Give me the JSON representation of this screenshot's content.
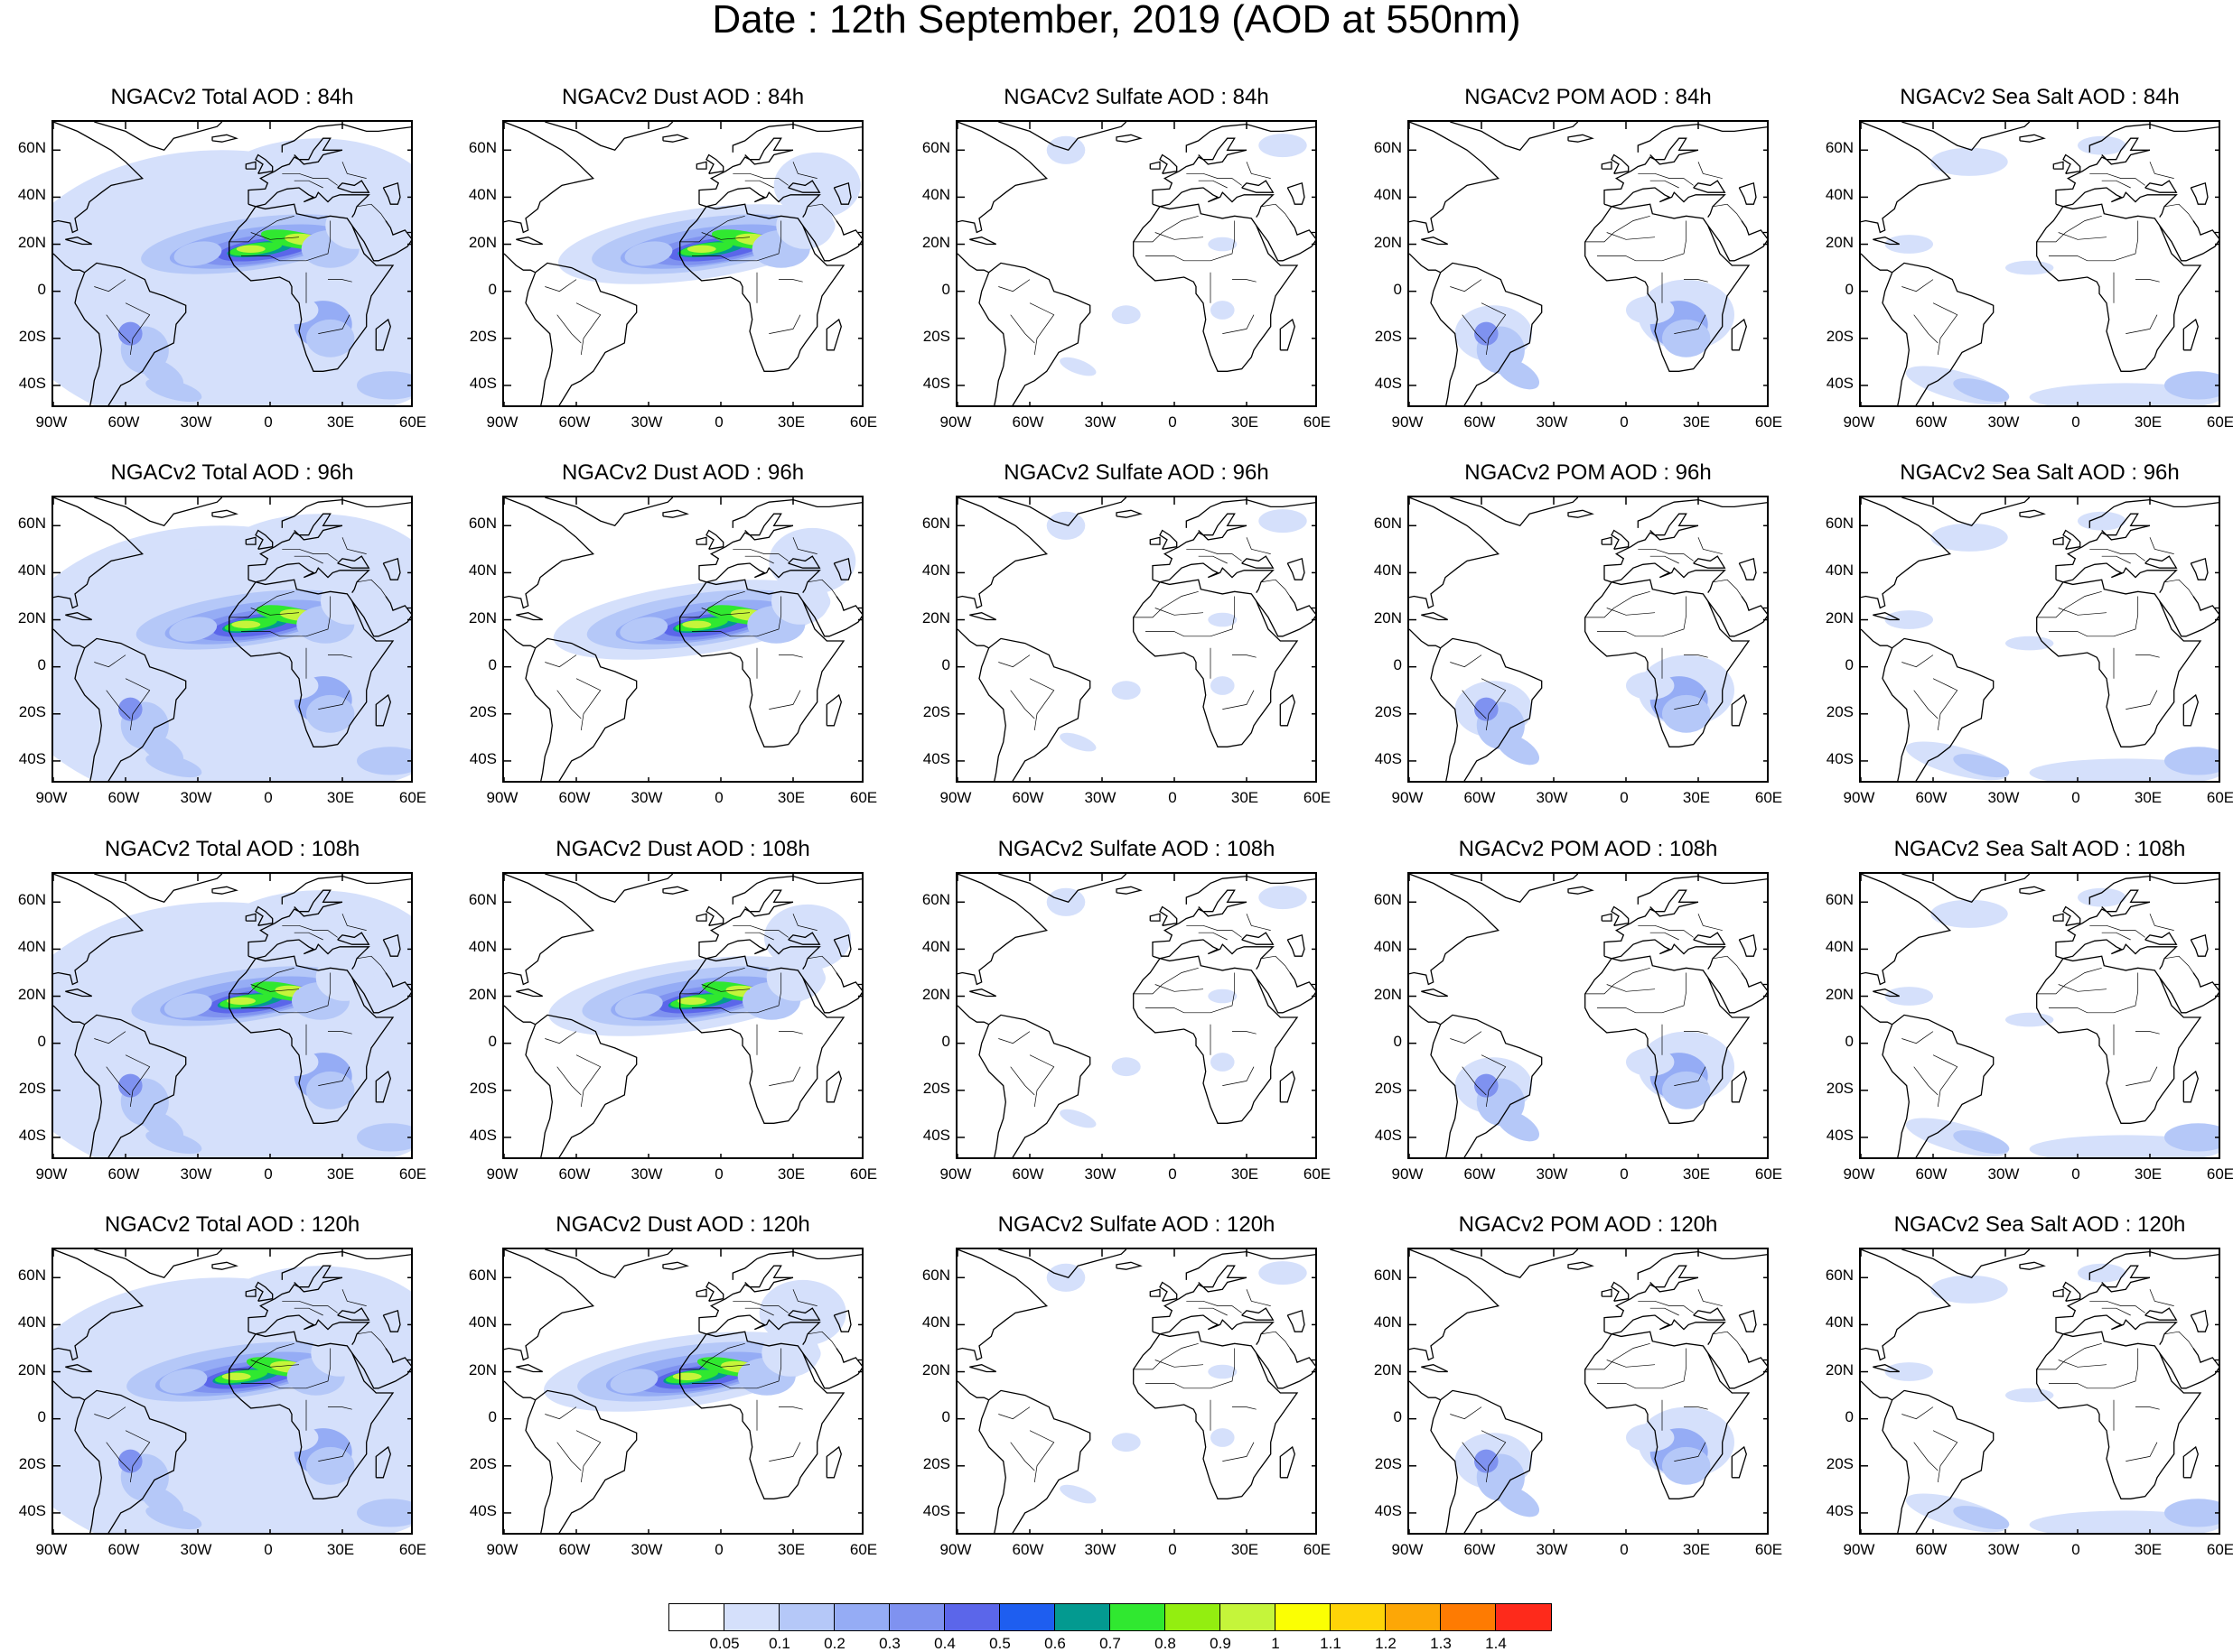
{
  "title": "Date : 12th September, 2019 (AOD at 550nm)",
  "rows": [
    {
      "forecast": "84h",
      "panels": [
        "NGACv2 Total AOD : 84h",
        "NGACv2 Dust AOD : 84h",
        "NGACv2 Sulfate AOD : 84h",
        "NGACv2 POM AOD : 84h",
        "NGACv2 Sea Salt AOD : 84h"
      ]
    },
    {
      "forecast": "96h",
      "panels": [
        "NGACv2 Total AOD : 96h",
        "NGACv2 Dust AOD : 96h",
        "NGACv2 Sulfate AOD : 96h",
        "NGACv2 POM AOD : 96h",
        "NGACv2 Sea Salt AOD : 96h"
      ]
    },
    {
      "forecast": "108h",
      "panels": [
        "NGACv2 Total AOD : 108h",
        "NGACv2 Dust AOD : 108h",
        "NGACv2 Sulfate AOD : 108h",
        "NGACv2 POM AOD : 108h",
        "NGACv2 Sea Salt AOD : 108h"
      ]
    },
    {
      "forecast": "120h",
      "panels": [
        "NGACv2 Total AOD : 120h",
        "NGACv2 Dust AOD : 120h",
        "NGACv2 Sulfate AOD : 120h",
        "NGACv2 POM AOD : 120h",
        "NGACv2 Sea Salt  AOD : 120h"
      ]
    }
  ],
  "lat_labels": [
    "60N",
    "40N",
    "20N",
    "0",
    "20S",
    "40S"
  ],
  "lon_labels": [
    "90W",
    "60W",
    "30W",
    "0",
    "30E",
    "60E"
  ],
  "colorbar": {
    "colors": [
      "#ffffff",
      "#d5e0fb",
      "#b5c8f8",
      "#95acf5",
      "#7f92f0",
      "#5b66ea",
      "#1e5ef0",
      "#039a90",
      "#30e830",
      "#93ee10",
      "#c5f53a",
      "#fbff03",
      "#fed408",
      "#fda706",
      "#fe7b02",
      "#fe2a1b"
    ],
    "labels": [
      "0.05",
      "0.1",
      "0.2",
      "0.3",
      "0.4",
      "0.5",
      "0.6",
      "0.7",
      "0.8",
      "0.9",
      "1",
      "1.1",
      "1.2",
      "1.3",
      "1.4"
    ]
  }
}
